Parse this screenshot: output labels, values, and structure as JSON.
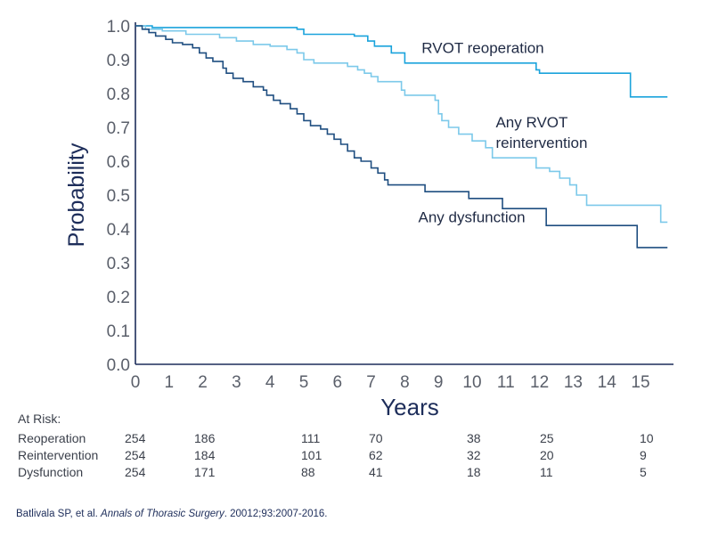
{
  "chart_data": {
    "type": "line",
    "step": true,
    "xlabel": "Years",
    "ylabel": "Probability",
    "xlim": [
      0,
      15.8
    ],
    "ylim": [
      0,
      1.0
    ],
    "x_ticks": [
      "0",
      "1",
      "2",
      "3",
      "4",
      "5",
      "6",
      "7",
      "8",
      "9",
      "10",
      "11",
      "12",
      "13",
      "14",
      "15"
    ],
    "y_ticks": [
      "0.0",
      "0.1",
      "0.2",
      "0.3",
      "0.4",
      "0.5",
      "0.6",
      "0.7",
      "0.8",
      "0.9",
      "1.0"
    ],
    "grid": false,
    "legend": "none",
    "series": [
      {
        "name": "RVOT reoperation",
        "color": "#1aa3dc",
        "points": [
          [
            0,
            1.0
          ],
          [
            0.3,
            1.0
          ],
          [
            0.5,
            0.995
          ],
          [
            4.8,
            0.99
          ],
          [
            5.0,
            0.975
          ],
          [
            6.5,
            0.97
          ],
          [
            6.9,
            0.955
          ],
          [
            7.1,
            0.94
          ],
          [
            7.6,
            0.92
          ],
          [
            8.0,
            0.89
          ],
          [
            11.9,
            0.87
          ],
          [
            12.0,
            0.86
          ],
          [
            14.7,
            0.79
          ],
          [
            15.8,
            0.79
          ]
        ]
      },
      {
        "name": "Any RVOT reintervention",
        "color": "#7cc9ea",
        "points": [
          [
            0,
            1.0
          ],
          [
            0.3,
            0.99
          ],
          [
            0.8,
            0.985
          ],
          [
            1.5,
            0.975
          ],
          [
            2.5,
            0.965
          ],
          [
            3.0,
            0.955
          ],
          [
            3.5,
            0.945
          ],
          [
            4.0,
            0.94
          ],
          [
            4.5,
            0.93
          ],
          [
            4.8,
            0.92
          ],
          [
            5.0,
            0.9
          ],
          [
            5.3,
            0.89
          ],
          [
            6.3,
            0.88
          ],
          [
            6.6,
            0.87
          ],
          [
            6.8,
            0.86
          ],
          [
            7.0,
            0.85
          ],
          [
            7.2,
            0.835
          ],
          [
            7.9,
            0.81
          ],
          [
            8.0,
            0.795
          ],
          [
            8.9,
            0.78
          ],
          [
            9.0,
            0.74
          ],
          [
            9.1,
            0.72
          ],
          [
            9.3,
            0.7
          ],
          [
            9.6,
            0.68
          ],
          [
            10.0,
            0.66
          ],
          [
            10.4,
            0.64
          ],
          [
            10.6,
            0.61
          ],
          [
            11.9,
            0.58
          ],
          [
            12.3,
            0.57
          ],
          [
            12.6,
            0.55
          ],
          [
            12.9,
            0.53
          ],
          [
            13.1,
            0.5
          ],
          [
            13.4,
            0.47
          ],
          [
            15.6,
            0.42
          ],
          [
            15.8,
            0.42
          ]
        ]
      },
      {
        "name": "Any dysfunction",
        "color": "#1f4e80",
        "points": [
          [
            0,
            1.0
          ],
          [
            0.2,
            0.99
          ],
          [
            0.4,
            0.98
          ],
          [
            0.6,
            0.97
          ],
          [
            0.9,
            0.96
          ],
          [
            1.1,
            0.95
          ],
          [
            1.4,
            0.945
          ],
          [
            1.7,
            0.935
          ],
          [
            1.9,
            0.92
          ],
          [
            2.1,
            0.905
          ],
          [
            2.3,
            0.895
          ],
          [
            2.6,
            0.875
          ],
          [
            2.7,
            0.86
          ],
          [
            2.9,
            0.845
          ],
          [
            3.2,
            0.835
          ],
          [
            3.5,
            0.82
          ],
          [
            3.8,
            0.81
          ],
          [
            3.9,
            0.795
          ],
          [
            4.1,
            0.78
          ],
          [
            4.3,
            0.77
          ],
          [
            4.6,
            0.755
          ],
          [
            4.8,
            0.74
          ],
          [
            5.0,
            0.72
          ],
          [
            5.2,
            0.705
          ],
          [
            5.5,
            0.695
          ],
          [
            5.7,
            0.68
          ],
          [
            5.9,
            0.665
          ],
          [
            6.1,
            0.65
          ],
          [
            6.3,
            0.63
          ],
          [
            6.5,
            0.61
          ],
          [
            6.7,
            0.6
          ],
          [
            7.0,
            0.58
          ],
          [
            7.2,
            0.565
          ],
          [
            7.4,
            0.545
          ],
          [
            7.5,
            0.53
          ],
          [
            8.6,
            0.51
          ],
          [
            9.9,
            0.49
          ],
          [
            10.9,
            0.46
          ],
          [
            12.2,
            0.41
          ],
          [
            14.9,
            0.345
          ],
          [
            15.8,
            0.345
          ]
        ]
      }
    ],
    "annotations": [
      {
        "text": "RVOT reoperation",
        "x": 8.5,
        "y": 0.92
      },
      {
        "text": "Any RVOT",
        "x": 10.7,
        "y": 0.7
      },
      {
        "text": "reintervention",
        "x": 10.7,
        "y": 0.64
      },
      {
        "text": "Any dysfunction",
        "x": 8.4,
        "y": 0.42
      }
    ]
  },
  "at_risk": {
    "title": "At Risk:",
    "rows": [
      {
        "label": "Reoperation",
        "values": [
          "254",
          "186",
          "111",
          "70",
          "38",
          "25",
          "10"
        ]
      },
      {
        "label": "Reintervention",
        "values": [
          "254",
          "184",
          "101",
          "62",
          "32",
          "20",
          "9"
        ]
      },
      {
        "label": "Dysfunction",
        "values": [
          "254",
          "171",
          "88",
          "41",
          "18",
          "11",
          "5"
        ]
      }
    ]
  },
  "citation": {
    "authors": "Batlivala SP, et al. ",
    "journal": "Annals of Thorasic Surgery",
    "rest": ". 20012;93:2007-2016."
  }
}
